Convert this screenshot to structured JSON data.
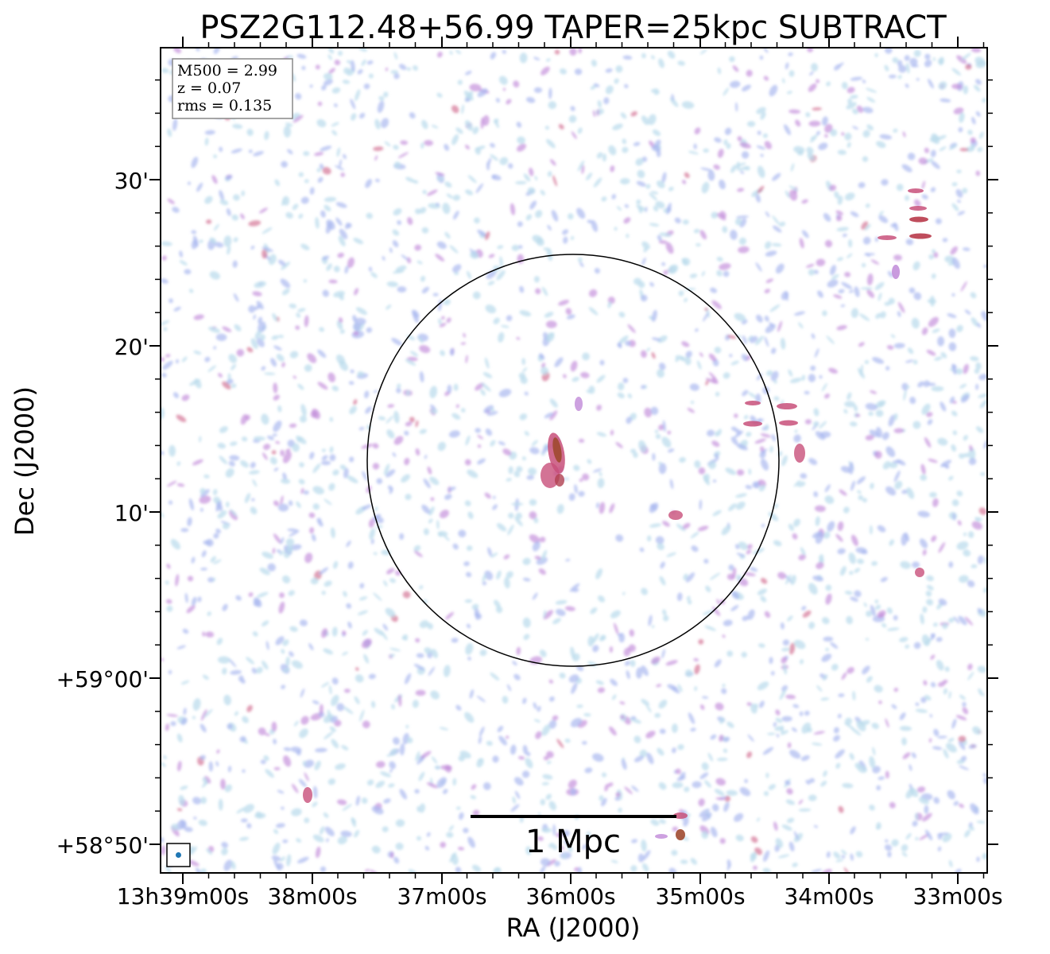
{
  "figure": {
    "title": "PSZ2G112.48+56.99 TAPER=25kpc SUBTRACT",
    "xlabel": "RA (J2000)",
    "ylabel": "Dec (J2000)",
    "x_ticks": [
      "13h39m00s",
      "38m00s",
      "37m00s",
      "36m00s",
      "35m00s",
      "34m00s",
      "33m00s"
    ],
    "y_ticks": [
      "+58°50'",
      "+59°00'",
      "10'",
      "20'",
      "30'"
    ],
    "info_box": {
      "line1": "M500 = 2.99",
      "line2": "z = 0.07",
      "line3": "rms = 0.135"
    },
    "scale_bar_label": "1 Mpc",
    "colors": {
      "noise_light": "#bcdcec",
      "noise_mid": "#a9b8f0",
      "noise_strong": "#c089d8",
      "peak": "#c8507a",
      "core": "#a04a30",
      "beam_marker": "#1f77b4"
    }
  }
}
